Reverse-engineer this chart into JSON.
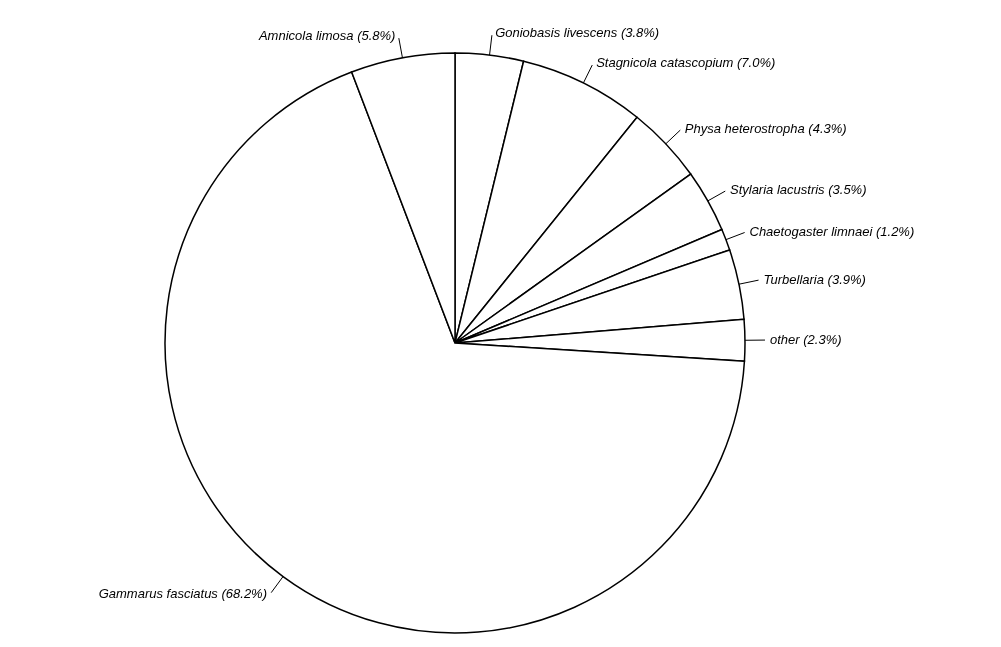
{
  "chart_data": {
    "type": "pie",
    "categories": [
      "Goniobasis livescens (3.8%)",
      "Stagnicola catascopium (7.0%)",
      "Physa heterostropha (4.3%)",
      "Stylaria lacustris (3.5%)",
      "Chaetogaster limnaei (1.2%)",
      "Turbellaria (3.9%)",
      "other (2.3%)",
      "Gammarus fasciatus (68.2%)",
      "Amnicola limosa (5.8%)"
    ],
    "values": [
      3.8,
      7.0,
      4.3,
      3.5,
      1.2,
      3.9,
      2.3,
      68.2,
      5.8
    ],
    "colors": [
      "#ffffff",
      "#ffffff",
      "#ffffff",
      "#ffffff",
      "#ffffff",
      "#ffffff",
      "#ffffff",
      "#ffffff",
      "#ffffff"
    ]
  }
}
